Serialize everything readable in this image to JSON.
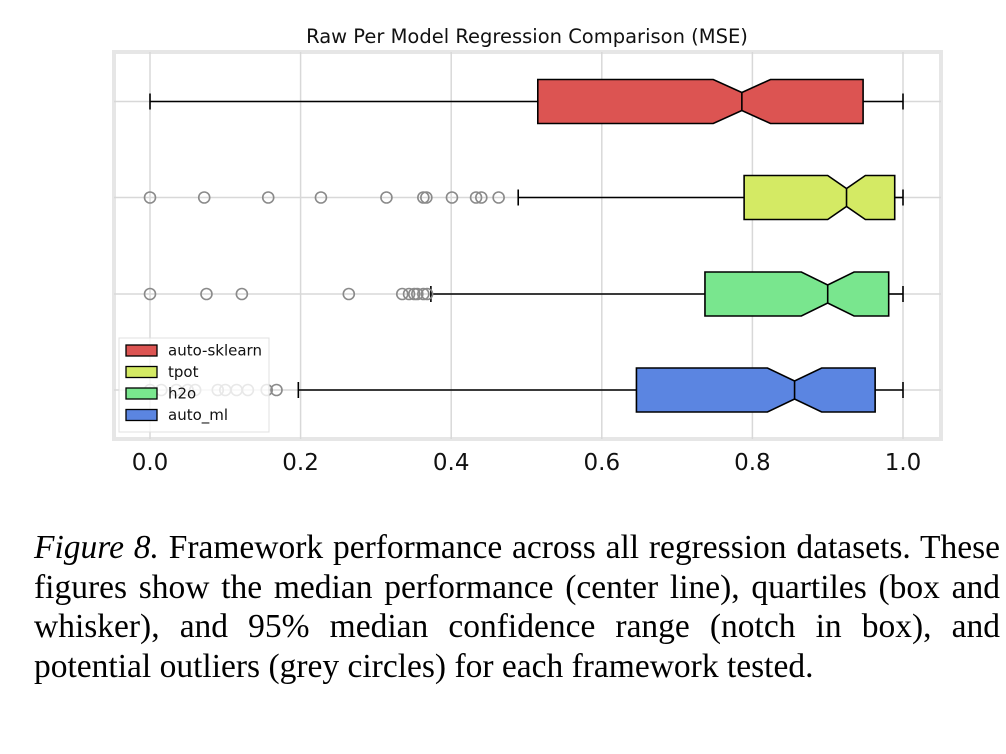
{
  "chart_data": {
    "type": "boxplot",
    "orientation": "horizontal",
    "notched": true,
    "title": "Raw Per Model Regression Comparison (MSE)",
    "xlabel": "",
    "ylabel": "",
    "xlim": [
      -0.05,
      1.05
    ],
    "xticks": [
      0.0,
      0.2,
      0.4,
      0.6,
      0.8,
      1.0
    ],
    "xtick_labels": [
      "0.0",
      "0.2",
      "0.4",
      "0.6",
      "0.8",
      "1.0"
    ],
    "grid": true,
    "legend_position": "lower-left",
    "series": [
      {
        "name": "auto-sklearn",
        "color": "#dc5452",
        "whisker_low": 0.0,
        "q1": 0.515,
        "median": 0.786,
        "q3": 0.947,
        "whisker_high": 1.0,
        "notch_low": 0.748,
        "notch_high": 0.824,
        "outliers": []
      },
      {
        "name": "tpot",
        "color": "#d4ea64",
        "whisker_low": 0.489,
        "q1": 0.789,
        "median": 0.925,
        "q3": 0.989,
        "whisker_high": 1.0,
        "notch_low": 0.9,
        "notch_high": 0.95,
        "outliers": [
          0.0,
          0.072,
          0.157,
          0.227,
          0.314,
          0.363,
          0.367,
          0.401,
          0.433,
          0.44,
          0.463
        ]
      },
      {
        "name": "h2o",
        "color": "#79e68e",
        "whisker_low": 0.373,
        "q1": 0.737,
        "median": 0.9,
        "q3": 0.981,
        "whisker_high": 1.0,
        "notch_low": 0.865,
        "notch_high": 0.935,
        "outliers": [
          0.0,
          0.075,
          0.122,
          0.264,
          0.335,
          0.344,
          0.351,
          0.355,
          0.363,
          0.368
        ]
      },
      {
        "name": "auto_ml",
        "color": "#5b85e1",
        "whisker_low": 0.197,
        "q1": 0.646,
        "median": 0.856,
        "q3": 0.963,
        "whisker_high": 1.0,
        "notch_low": 0.82,
        "notch_high": 0.892,
        "outliers": [
          0.0,
          0.015,
          0.035,
          0.05,
          0.06,
          0.09,
          0.1,
          0.115,
          0.13,
          0.155,
          0.168
        ]
      }
    ]
  },
  "caption": {
    "label": "Figure 8.",
    "text": " Framework performance across all regression datasets. These figures show the median performance (center line), quartiles (box and whisker), and 95% median confidence range (notch in box), and potential outliers (grey circles) for each framework tested."
  }
}
